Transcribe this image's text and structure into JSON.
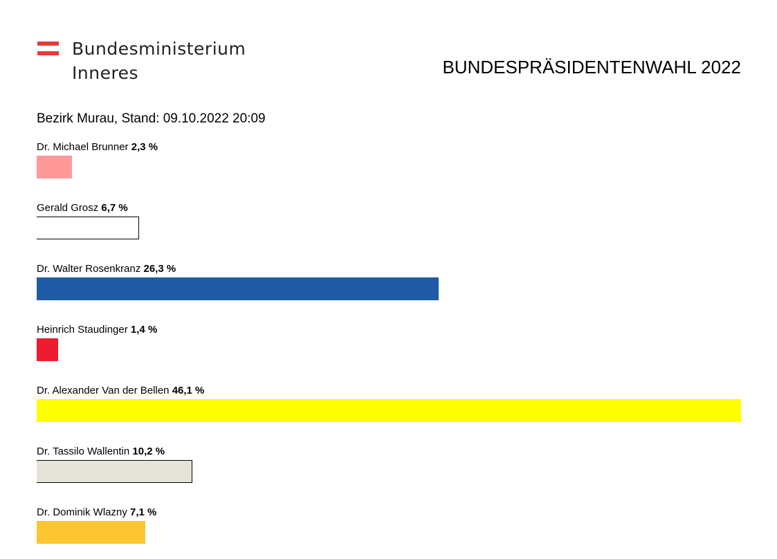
{
  "header": {
    "ministry_line1": "Bundesministerium",
    "ministry_line2": "Inneres",
    "election_title": "BUNDESPRÄSIDENTENWAHL 2022",
    "subtitle": "Bezirk Murau, Stand: 09.10.2022 20:09"
  },
  "logo_colors": {
    "red": "#e63a3a",
    "white": "#ffffff"
  },
  "chart_data": {
    "type": "bar",
    "orientation": "horizontal",
    "title": "BUNDESPRÄSIDENTENWAHL 2022",
    "subtitle": "Bezirk Murau, Stand: 09.10.2022 20:09",
    "unit": "%",
    "max_value": 46.1,
    "categories": [
      "Dr. Michael Brunner",
      "Gerald Grosz",
      "Dr. Walter Rosenkranz",
      "Heinrich Staudinger",
      "Dr. Alexander Van der Bellen",
      "Dr. Tassilo Wallentin",
      "Dr. Dominik Wlazny"
    ],
    "values": [
      2.3,
      6.7,
      26.3,
      1.4,
      46.1,
      10.2,
      7.1
    ],
    "value_labels": [
      "2,3 %",
      "6,7 %",
      "26,3 %",
      "1,4 %",
      "46,1 %",
      "10,2 %",
      "7,1 %"
    ],
    "colors": [
      "#ff9999",
      "#ffffff",
      "#1f5ba7",
      "#ed1c2e",
      "#ffff00",
      "#e6e4d8",
      "#fcc633"
    ],
    "borders": [
      "none",
      "#000000",
      "none",
      "none",
      "none",
      "#000000",
      "none"
    ]
  }
}
